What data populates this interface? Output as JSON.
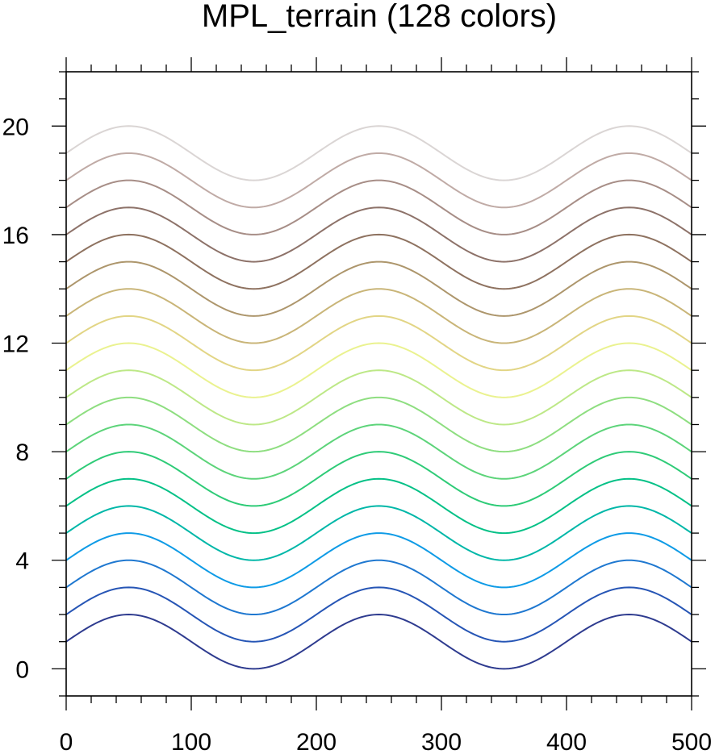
{
  "chart_data": {
    "type": "line",
    "title": "MPL_terrain (128 colors)",
    "xlabel": "",
    "ylabel": "",
    "xlim": [
      0,
      500
    ],
    "ylim": [
      -1,
      22
    ],
    "x_ticks": [
      0,
      100,
      200,
      300,
      400,
      500
    ],
    "y_ticks": [
      0,
      4,
      8,
      12,
      16,
      20
    ],
    "grid": false,
    "curve": "y = offset + 1 + sin(2*pi*x/200)",
    "series": [
      {
        "offset": 0,
        "y_at_x0": 1,
        "y_max": 2,
        "y_min": 0,
        "color": "#2e3b8f"
      },
      {
        "offset": 1,
        "y_at_x0": 2,
        "y_max": 3,
        "y_min": 1,
        "color": "#2655b5"
      },
      {
        "offset": 2,
        "y_at_x0": 3,
        "y_max": 4,
        "y_min": 2,
        "color": "#1f78d0"
      },
      {
        "offset": 3,
        "y_at_x0": 4,
        "y_max": 5,
        "y_min": 3,
        "color": "#0f9be6"
      },
      {
        "offset": 4,
        "y_at_x0": 5,
        "y_max": 6,
        "y_min": 4,
        "color": "#00b7a8"
      },
      {
        "offset": 5,
        "y_at_x0": 6,
        "y_max": 7,
        "y_min": 5,
        "color": "#05c187"
      },
      {
        "offset": 6,
        "y_at_x0": 7,
        "y_max": 8,
        "y_min": 6,
        "color": "#2ecb77"
      },
      {
        "offset": 7,
        "y_at_x0": 8,
        "y_max": 9,
        "y_min": 7,
        "color": "#5dd47a"
      },
      {
        "offset": 8,
        "y_at_x0": 9,
        "y_max": 10,
        "y_min": 8,
        "color": "#8ede80"
      },
      {
        "offset": 9,
        "y_at_x0": 10,
        "y_max": 11,
        "y_min": 9,
        "color": "#bde887"
      },
      {
        "offset": 10,
        "y_at_x0": 11,
        "y_max": 12,
        "y_min": 10,
        "color": "#eaf28f"
      },
      {
        "offset": 11,
        "y_at_x0": 12,
        "y_max": 13,
        "y_min": 11,
        "color": "#e2d585"
      },
      {
        "offset": 12,
        "y_at_x0": 13,
        "y_max": 14,
        "y_min": 12,
        "color": "#c9b578"
      },
      {
        "offset": 13,
        "y_at_x0": 14,
        "y_max": 15,
        "y_min": 13,
        "color": "#ad966c"
      },
      {
        "offset": 14,
        "y_at_x0": 15,
        "y_max": 16,
        "y_min": 14,
        "color": "#8e7260"
      },
      {
        "offset": 15,
        "y_at_x0": 16,
        "y_max": 17,
        "y_min": 15,
        "color": "#8d7269"
      },
      {
        "offset": 16,
        "y_at_x0": 17,
        "y_max": 18,
        "y_min": 16,
        "color": "#a78e87"
      },
      {
        "offset": 17,
        "y_at_x0": 18,
        "y_max": 19,
        "y_min": 17,
        "color": "#c0aba6"
      },
      {
        "offset": 18,
        "y_at_x0": 19,
        "y_max": 20,
        "y_min": 18,
        "color": "#dad5d4"
      }
    ]
  }
}
